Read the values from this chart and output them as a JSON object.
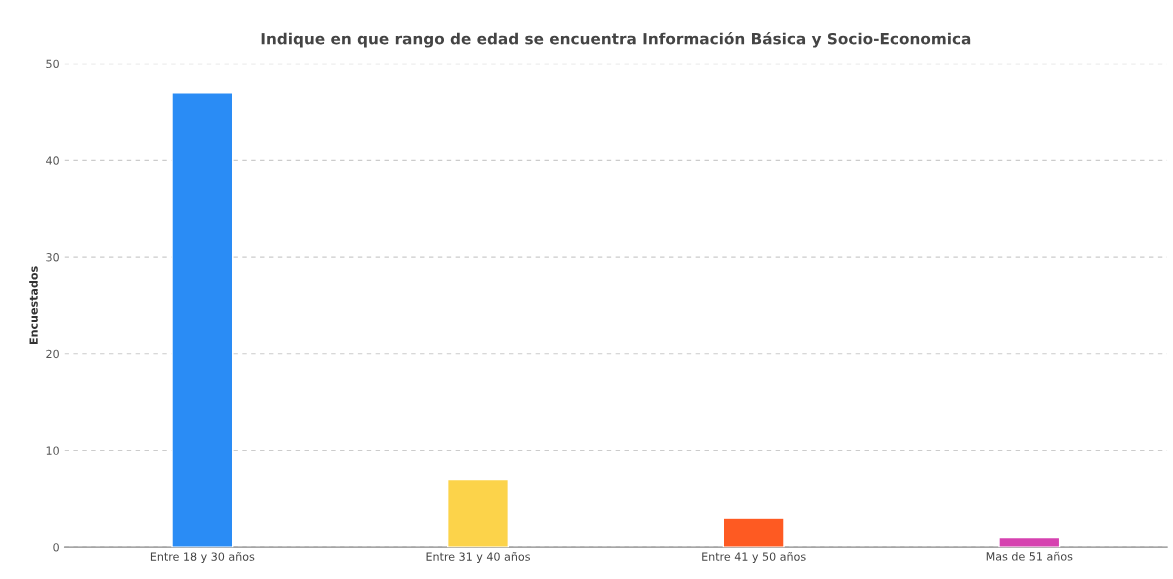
{
  "chart_data": {
    "type": "bar",
    "title": "Indique en que rango de edad se encuentra Información Básica y Socio-Economica",
    "ylabel": "Encuestados",
    "categories": [
      "Entre 18 y 30 años",
      "Entre 31 y 40 años",
      "Entre 41 y 50 años",
      "Mas de 51 años"
    ],
    "values": [
      47,
      7,
      3,
      1
    ],
    "colors": [
      "#2a8cf5",
      "#fcd34a",
      "#fe5a22",
      "#d642b0"
    ],
    "ylim": [
      0,
      50
    ],
    "yticks": [
      0,
      10,
      20,
      30,
      40,
      50
    ],
    "grid": "y"
  }
}
